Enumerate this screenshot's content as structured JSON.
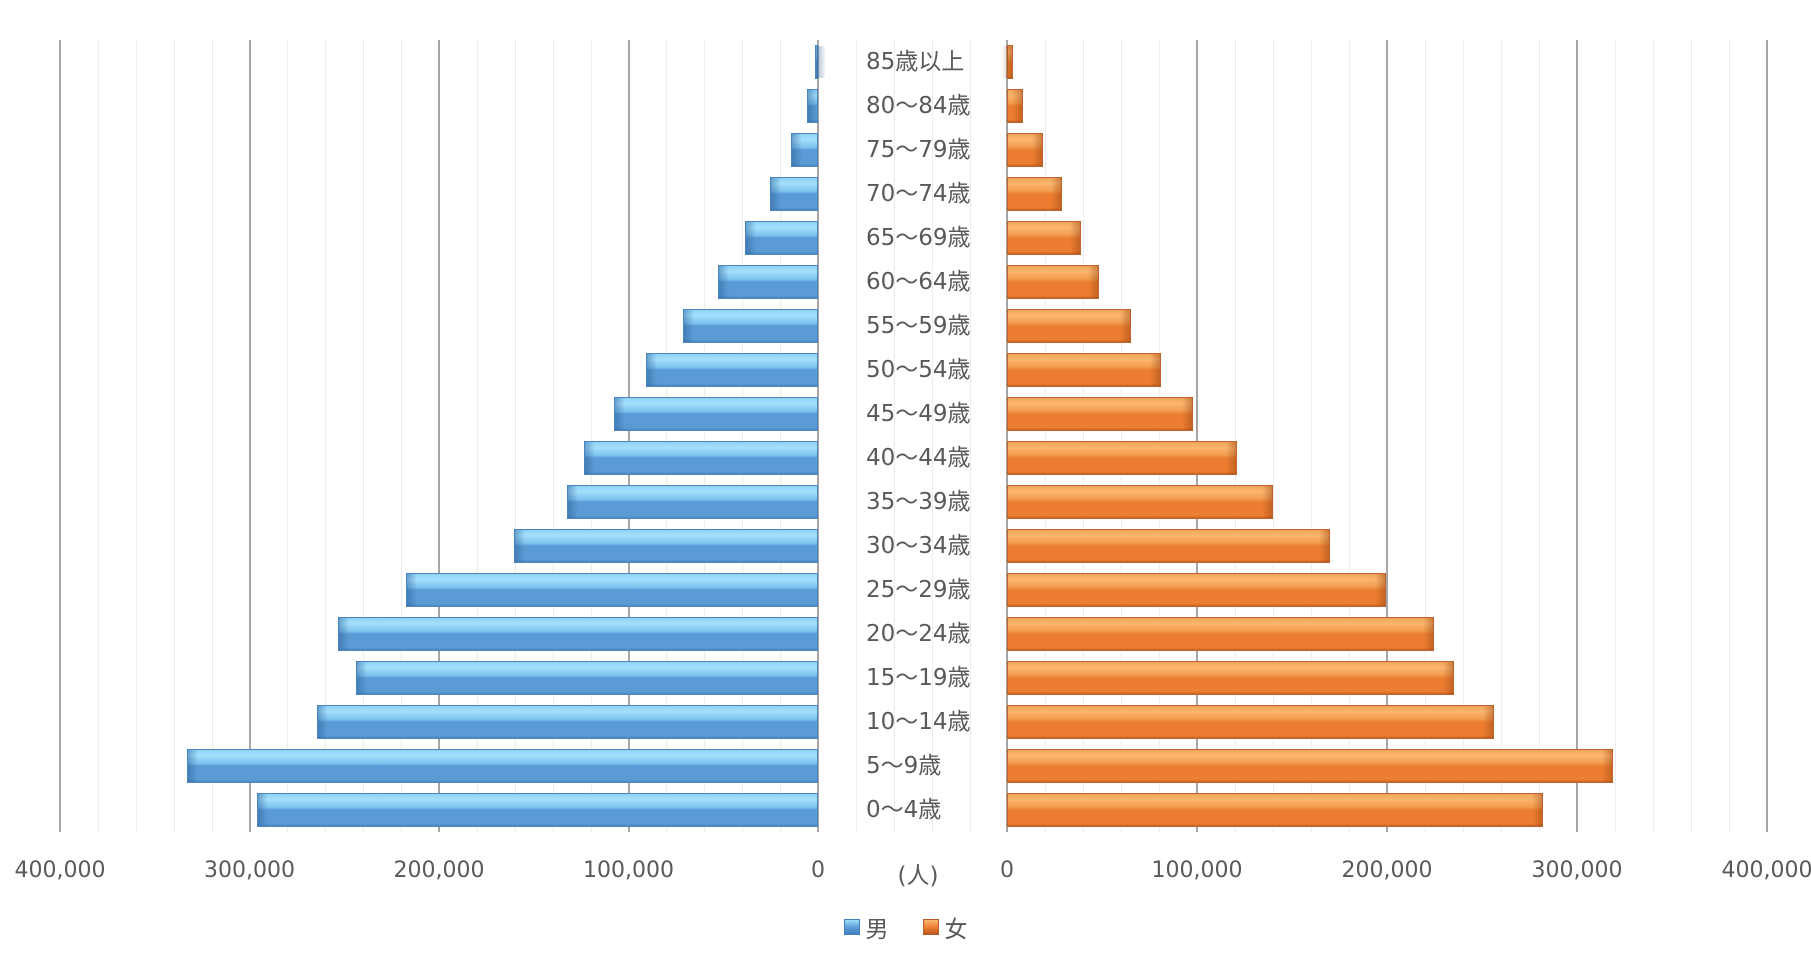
{
  "chart_data": {
    "type": "bar",
    "subtype": "population-pyramid",
    "title": "",
    "xlabel": "(人)",
    "ylabel": "",
    "categories": [
      "85歳以上",
      "80〜84歳",
      "75〜79歳",
      "70〜74歳",
      "65〜69歳",
      "60〜64歳",
      "55〜59歳",
      "50〜54歳",
      "45〜49歳",
      "40〜44歳",
      "35〜39歳",
      "30〜34歳",
      "25〜29歳",
      "20〜24歳",
      "15〜19歳",
      "10〜14歳",
      "5〜9歳",
      "0〜4歳"
    ],
    "series": [
      {
        "name": "男",
        "color": "#5b9bd5",
        "side": "left",
        "values": [
          1500,
          5800,
          14400,
          25300,
          38500,
          52800,
          71400,
          91000,
          107400,
          123300,
          132300,
          160300,
          217400,
          253400,
          243900,
          264500,
          332800,
          295800
        ]
      },
      {
        "name": "女",
        "color": "#ed7d31",
        "side": "right",
        "values": [
          3200,
          8400,
          19000,
          29000,
          39000,
          48500,
          65400,
          81200,
          97900,
          120900,
          139800,
          170200,
          199500,
          224700,
          235300,
          256300,
          319000,
          282100
        ]
      }
    ],
    "xlim": [
      0,
      400000
    ],
    "xticks_left": [
      "400,000",
      "300,000",
      "200,000",
      "100,000",
      "0"
    ],
    "xticks_right": [
      "0",
      "100,000",
      "200,000",
      "300,000",
      "400,000"
    ],
    "grid": true,
    "legend_position": "bottom"
  },
  "axis": {
    "unit_label": "(人)",
    "left_ticks": [
      {
        "label": "400,000",
        "value": 400000
      },
      {
        "label": "300,000",
        "value": 300000
      },
      {
        "label": "200,000",
        "value": 200000
      },
      {
        "label": "100,000",
        "value": 100000
      },
      {
        "label": "0",
        "value": 0
      }
    ],
    "right_ticks": [
      {
        "label": "0",
        "value": 0
      },
      {
        "label": "100,000",
        "value": 100000
      },
      {
        "label": "200,000",
        "value": 200000
      },
      {
        "label": "300,000",
        "value": 300000
      },
      {
        "label": "400,000",
        "value": 400000
      }
    ]
  },
  "legend": {
    "items": [
      {
        "label": "男",
        "color": "#5b9bd5"
      },
      {
        "label": "女",
        "color": "#ed7d31"
      }
    ]
  }
}
